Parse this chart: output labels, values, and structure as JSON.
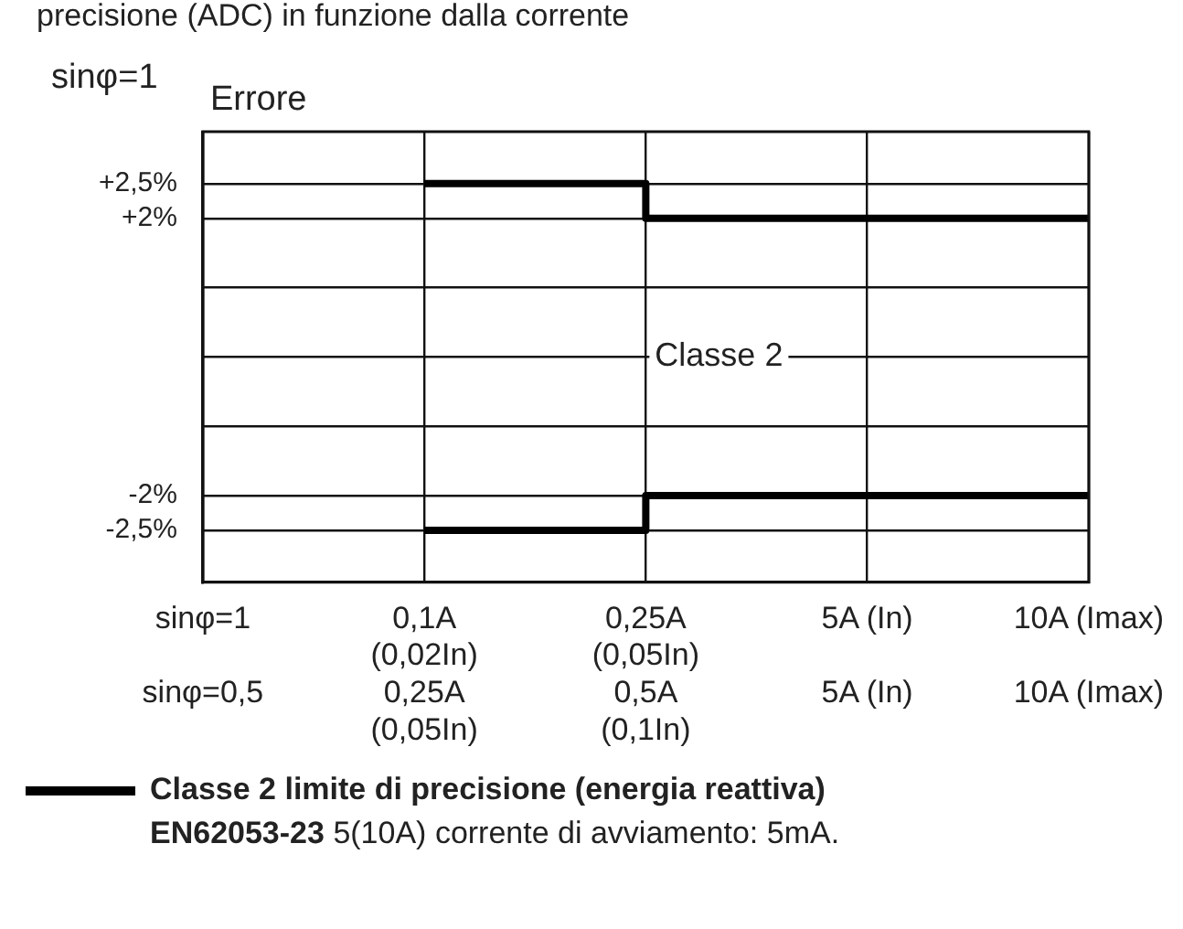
{
  "chart_data": {
    "type": "step",
    "title": "precisione (ADC) in funzione dalla corrente",
    "ylabel": "Errore",
    "categories": [
      "sinφ=1\n\nsinφ=0,5",
      "0,1A\n(0,02In)\n0,25A\n(0,05In)",
      "0,25A\n(0,05In)\n0,5A\n(0,1In)",
      "5A (In)\n\n5A (In)",
      "10A (Imax)\n\n10A (Imax)"
    ],
    "series": [
      {
        "name": "Classe 2 limite di precisione (energia reattiva)",
        "color": "#000000",
        "values": [
          null,
          2.5,
          2,
          2,
          2
        ]
      },
      {
        "color": "#000000",
        "values": [
          null,
          -2.5,
          -2,
          -2,
          -2
        ]
      }
    ],
    "ylim": [
      -3.25,
      3.25
    ],
    "yticks": [
      {
        "value": 2.5,
        "label": "+2,5%"
      },
      {
        "value": 2,
        "label": "+2%"
      },
      {
        "value": 1,
        "label": null
      },
      {
        "value": 0,
        "label": null
      },
      {
        "value": -1,
        "label": null
      },
      {
        "value": -2,
        "label": "-2%"
      },
      {
        "value": -2.5,
        "label": "-2,5%"
      }
    ],
    "annotations": [
      "sinφ=1",
      "Classe 2",
      "EN62053-23 5(10A)  corrente di avviamento: 5mA."
    ],
    "grid": true,
    "legend": "bottom",
    "marker": "none",
    "line_style": "solid"
  }
}
